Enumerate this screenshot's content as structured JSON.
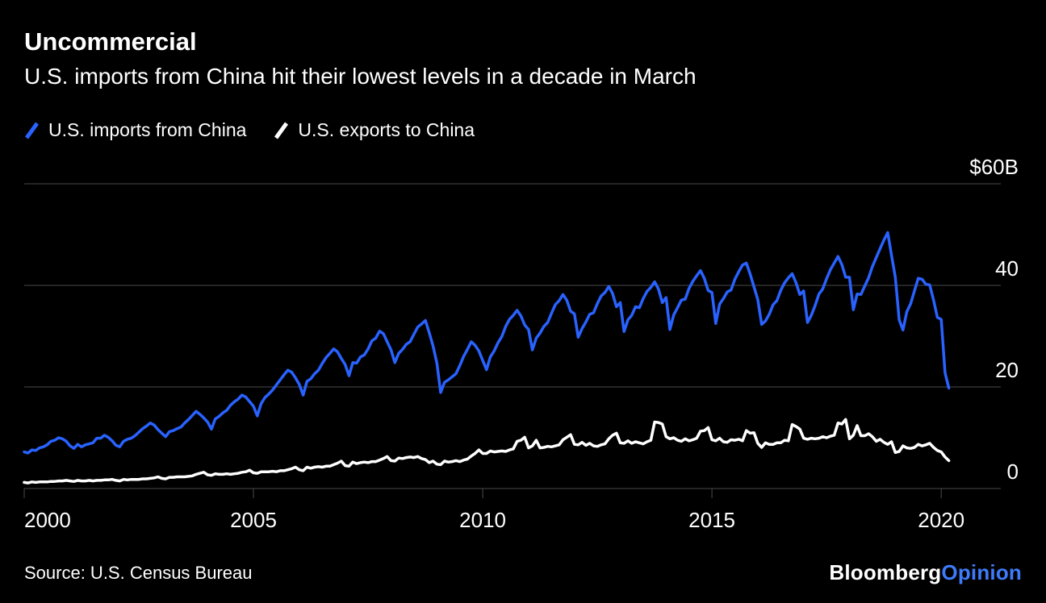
{
  "header": {
    "title": "Uncommercial",
    "subtitle": "U.S. imports from China hit their lowest levels in a decade in March"
  },
  "legend": [
    {
      "label": "U.S. imports from China",
      "color": "#2962ff"
    },
    {
      "label": "U.S. exports to China",
      "color": "#ffffff"
    }
  ],
  "footer": {
    "source": "Source: U.S. Census Bureau",
    "logo_bloomberg": "Bloomberg",
    "logo_opinion": "Opinion"
  },
  "colors": {
    "background": "#000000",
    "imports_blue": "#2962ff",
    "exports_white": "#ffffff",
    "grid": "#4a4a4a",
    "logo_opinion_blue": "#3e7bfa"
  },
  "chart_data": {
    "type": "line",
    "title": "Uncommercial",
    "subtitle": "U.S. imports from China hit their lowest levels in a decade in March",
    "unit": "USD billions per month",
    "x_frequency": "monthly",
    "x_start": "2000-01",
    "x_end": "2020-03",
    "x_start_year": 2000,
    "x_tick_labels": [
      "2000",
      "2005",
      "2010",
      "2015",
      "2020"
    ],
    "y_ticks": [
      0,
      20,
      40,
      60
    ],
    "y_tick_labels": [
      "0",
      "20",
      "40",
      "$60B"
    ],
    "ylim": [
      0,
      60
    ],
    "grid": true,
    "legend_position": "top-left",
    "series": [
      {
        "name": "U.S. imports from China",
        "color": "#2962ff",
        "values": [
          7.2,
          7.0,
          7.6,
          7.5,
          8.0,
          8.2,
          8.6,
          9.3,
          9.5,
          10.0,
          9.8,
          9.3,
          8.4,
          7.9,
          8.7,
          8.2,
          8.6,
          8.8,
          9.0,
          9.9,
          9.9,
          10.5,
          10.1,
          9.4,
          8.5,
          8.2,
          9.3,
          9.7,
          9.9,
          10.4,
          11.1,
          11.8,
          12.3,
          12.9,
          12.5,
          11.6,
          10.9,
          10.2,
          11.2,
          11.4,
          11.8,
          12.1,
          12.9,
          13.6,
          14.4,
          15.2,
          14.6,
          13.9,
          13.1,
          11.7,
          13.7,
          14.2,
          14.9,
          15.4,
          16.4,
          17.1,
          17.6,
          18.4,
          18.0,
          17.1,
          16.2,
          14.3,
          16.7,
          17.9,
          18.6,
          19.4,
          20.4,
          21.4,
          22.4,
          23.3,
          22.9,
          21.8,
          20.5,
          18.4,
          21.1,
          21.6,
          22.6,
          23.3,
          24.6,
          25.8,
          26.6,
          27.5,
          26.9,
          25.6,
          24.4,
          22.2,
          24.8,
          24.7,
          25.9,
          26.3,
          27.5,
          29.1,
          29.6,
          31.0,
          30.5,
          28.9,
          27.3,
          24.8,
          26.6,
          27.4,
          28.4,
          28.9,
          30.4,
          31.8,
          32.4,
          33.1,
          30.7,
          28.1,
          24.7,
          18.9,
          20.9,
          21.4,
          22.0,
          22.6,
          24.2,
          26.0,
          27.4,
          28.9,
          28.2,
          27.1,
          25.2,
          23.4,
          25.9,
          27.1,
          28.7,
          29.9,
          31.9,
          33.3,
          34.1,
          35.1,
          34.0,
          32.2,
          31.3,
          27.3,
          29.6,
          30.6,
          31.9,
          32.7,
          34.5,
          36.2,
          37.0,
          38.2,
          37.1,
          34.9,
          34.4,
          29.8,
          31.5,
          32.8,
          34.3,
          34.6,
          36.4,
          37.9,
          38.6,
          39.8,
          38.4,
          35.8,
          36.6,
          30.9,
          33.2,
          34.1,
          35.8,
          35.6,
          37.4,
          38.8,
          39.6,
          40.7,
          39.3,
          36.6,
          37.6,
          31.3,
          34.2,
          35.6,
          37.1,
          37.3,
          39.4,
          40.8,
          41.9,
          42.9,
          41.4,
          39.0,
          38.6,
          32.5,
          36.3,
          37.4,
          38.7,
          39.1,
          41.2,
          42.7,
          44.0,
          44.4,
          42.2,
          39.7,
          37.2,
          32.3,
          33.0,
          34.3,
          36.2,
          37.0,
          39.0,
          40.5,
          41.5,
          42.3,
          40.5,
          38.2,
          38.9,
          32.7,
          34.1,
          36.0,
          38.3,
          39.3,
          41.3,
          43.1,
          44.4,
          45.7,
          44.1,
          41.6,
          41.6,
          35.2,
          38.3,
          38.2,
          39.9,
          41.5,
          43.7,
          45.5,
          47.2,
          48.9,
          50.4,
          45.9,
          41.6,
          33.2,
          31.2,
          34.8,
          36.4,
          38.9,
          41.4,
          41.2,
          40.2,
          40.1,
          37.1,
          33.7,
          33.3,
          22.8,
          19.8
        ]
      },
      {
        "name": "U.S. exports to China",
        "color": "#ffffff",
        "values": [
          1.2,
          1.1,
          1.3,
          1.2,
          1.3,
          1.3,
          1.3,
          1.4,
          1.4,
          1.5,
          1.5,
          1.6,
          1.5,
          1.4,
          1.6,
          1.5,
          1.5,
          1.6,
          1.5,
          1.6,
          1.6,
          1.7,
          1.7,
          1.8,
          1.6,
          1.5,
          1.8,
          1.7,
          1.8,
          1.8,
          1.8,
          1.9,
          1.9,
          2.0,
          2.1,
          2.3,
          2.0,
          1.9,
          2.2,
          2.2,
          2.3,
          2.3,
          2.3,
          2.4,
          2.5,
          2.8,
          3.0,
          3.2,
          2.7,
          2.6,
          2.9,
          2.8,
          2.8,
          2.9,
          2.8,
          2.9,
          3.0,
          3.2,
          3.3,
          3.6,
          3.1,
          3.0,
          3.3,
          3.3,
          3.3,
          3.4,
          3.3,
          3.5,
          3.5,
          3.7,
          3.9,
          4.2,
          3.7,
          3.5,
          4.2,
          4.0,
          4.2,
          4.3,
          4.2,
          4.4,
          4.4,
          4.7,
          5.0,
          5.4,
          4.5,
          4.4,
          5.2,
          4.9,
          5.1,
          5.2,
          5.1,
          5.3,
          5.3,
          5.6,
          5.9,
          6.3,
          5.5,
          5.4,
          6.0,
          5.9,
          6.1,
          6.2,
          6.1,
          6.3,
          5.9,
          5.7,
          5.1,
          5.4,
          4.8,
          4.7,
          5.4,
          5.2,
          5.3,
          5.5,
          5.3,
          5.6,
          5.8,
          6.4,
          6.9,
          7.6,
          6.9,
          6.9,
          7.4,
          7.2,
          7.3,
          7.4,
          7.3,
          7.6,
          7.8,
          9.3,
          9.5,
          10.1,
          8.0,
          8.4,
          9.5,
          8.0,
          8.1,
          8.3,
          8.2,
          8.4,
          8.6,
          9.6,
          10.1,
          10.6,
          8.7,
          8.6,
          9.1,
          8.5,
          8.9,
          8.4,
          8.3,
          8.6,
          8.8,
          9.8,
          10.5,
          10.9,
          9.0,
          8.9,
          9.4,
          8.9,
          9.2,
          9.0,
          8.8,
          9.2,
          9.5,
          13.1,
          13.0,
          12.7,
          10.2,
          9.8,
          10.0,
          9.5,
          9.3,
          9.8,
          9.4,
          9.6,
          9.9,
          11.3,
          11.4,
          12.0,
          9.6,
          9.4,
          9.9,
          9.2,
          9.1,
          9.6,
          9.5,
          9.7,
          9.4,
          11.4,
          10.9,
          11.0,
          8.9,
          8.1,
          9.0,
          8.7,
          8.7,
          9.0,
          9.0,
          9.5,
          9.4,
          12.6,
          12.2,
          11.7,
          9.9,
          9.7,
          9.9,
          9.8,
          9.9,
          10.2,
          10.0,
          10.3,
          10.5,
          12.9,
          12.7,
          13.6,
          9.8,
          10.5,
          12.4,
          10.4,
          10.4,
          10.8,
          10.2,
          9.3,
          9.7,
          9.1,
          8.7,
          9.2,
          7.1,
          7.3,
          8.4,
          8.0,
          7.9,
          8.1,
          8.7,
          8.4,
          8.6,
          8.9,
          8.1,
          7.5,
          7.2,
          6.2,
          5.5
        ]
      }
    ]
  }
}
